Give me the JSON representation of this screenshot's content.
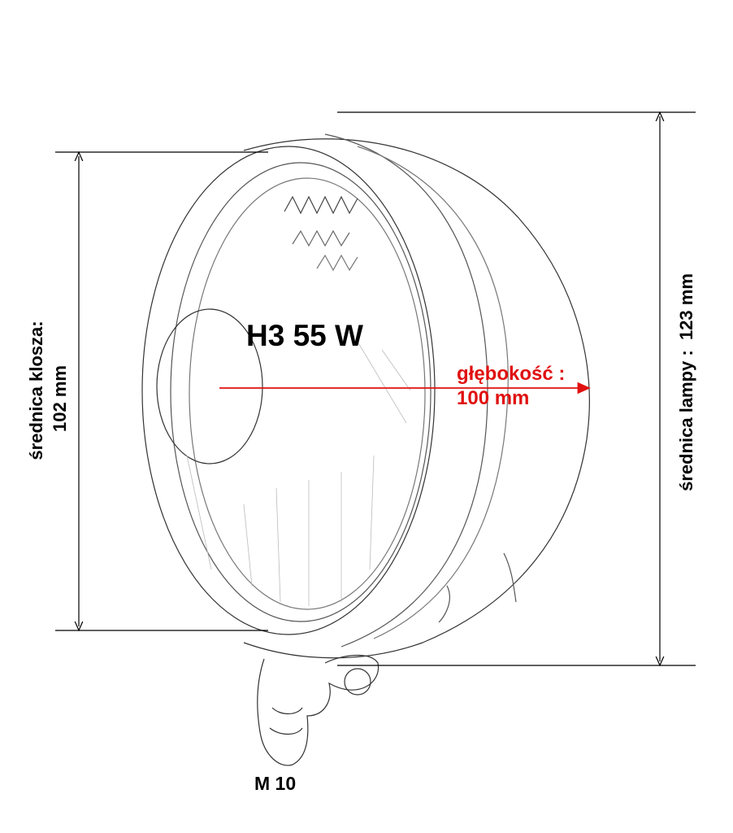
{
  "labels": {
    "bulb": "H3 55 W",
    "lens_diameter_title": "średnica klosza:",
    "lens_diameter_value": "102 mm",
    "lamp_diameter": "średnica lampy :  123 mm",
    "depth_title": "głębokość :",
    "depth_value": "100 mm",
    "thread": "M 10"
  },
  "colors": {
    "depth_arrow": "#e01010",
    "lines": "#000000"
  }
}
